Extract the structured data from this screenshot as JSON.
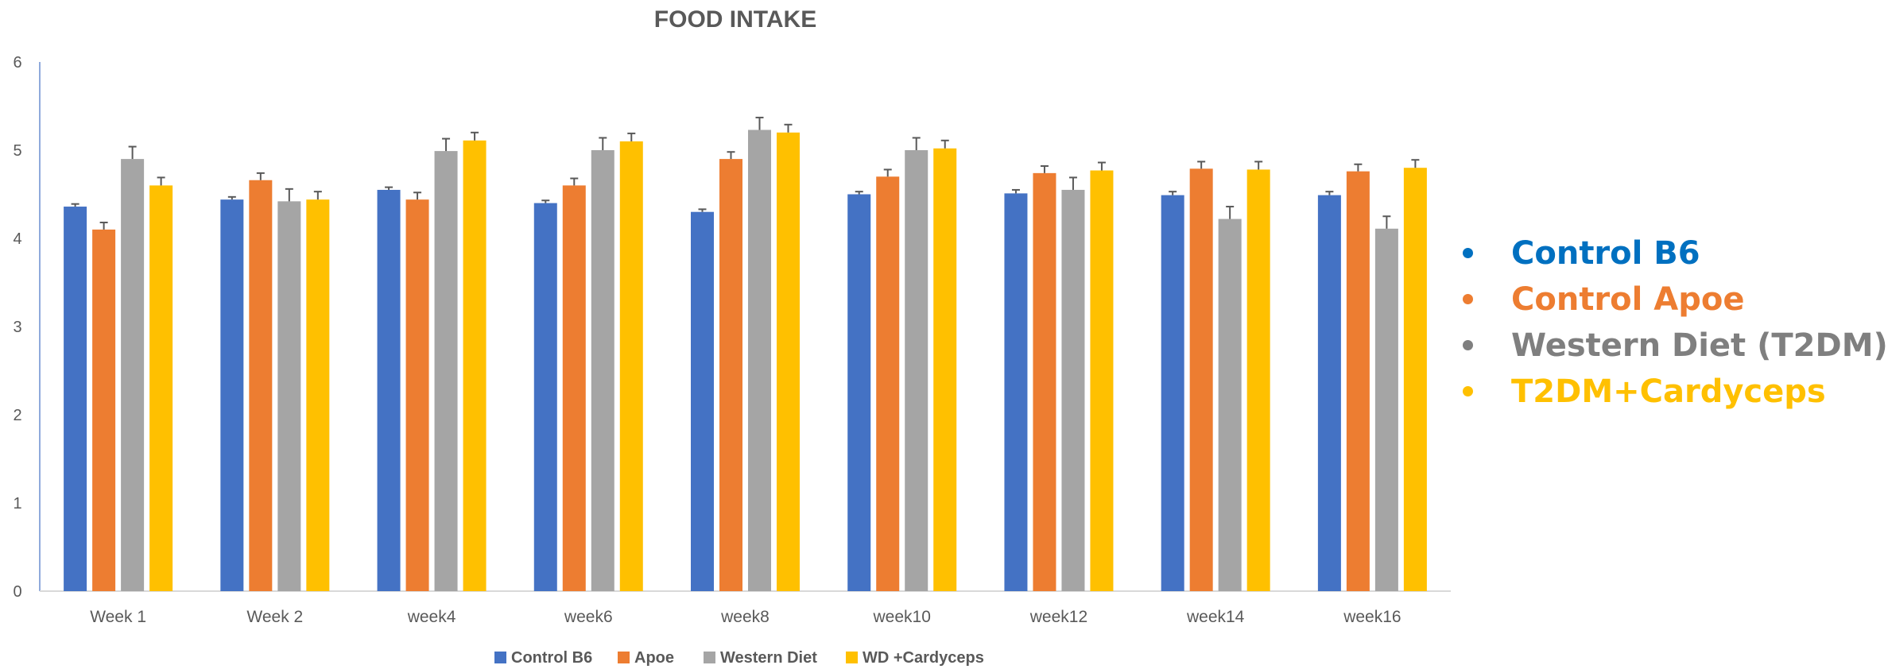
{
  "chart_data": {
    "type": "bar",
    "title": "FOOD INTAKE",
    "xlabel": "",
    "ylabel": "",
    "ylim": [
      0,
      6
    ],
    "yticks": [
      0,
      1,
      2,
      3,
      4,
      5,
      6
    ],
    "grid": false,
    "categories": [
      "Week 1",
      "Week 2",
      "week4",
      "week6",
      "week8",
      "week10",
      "week12",
      "week14",
      "week16"
    ],
    "series": [
      {
        "name": "Control B6",
        "color": "#4472C4",
        "values": [
          4.36,
          4.44,
          4.55,
          4.4,
          4.3,
          4.5,
          4.51,
          4.49,
          4.49
        ],
        "errors": [
          0.03,
          0.03,
          0.03,
          0.03,
          0.03,
          0.03,
          0.04,
          0.04,
          0.04
        ]
      },
      {
        "name": "Apoe",
        "color": "#ED7D31",
        "values": [
          4.1,
          4.66,
          4.44,
          4.6,
          4.9,
          4.7,
          4.74,
          4.79,
          4.76
        ],
        "errors": [
          0.08,
          0.08,
          0.08,
          0.08,
          0.08,
          0.08,
          0.08,
          0.08,
          0.08
        ]
      },
      {
        "name": "Western Diet",
        "color": "#A5A5A5",
        "values": [
          4.9,
          4.42,
          4.99,
          5.0,
          5.23,
          5.0,
          4.55,
          4.22,
          4.11
        ],
        "errors": [
          0.14,
          0.14,
          0.14,
          0.14,
          0.14,
          0.14,
          0.14,
          0.14,
          0.14
        ]
      },
      {
        "name": "WD +Cardyceps",
        "color": "#FFC000",
        "values": [
          4.6,
          4.44,
          5.11,
          5.1,
          5.2,
          5.02,
          4.77,
          4.78,
          4.8
        ],
        "errors": [
          0.09,
          0.09,
          0.09,
          0.09,
          0.09,
          0.09,
          0.09,
          0.09,
          0.09
        ]
      }
    ],
    "legend_position": "bottom",
    "side_legend": [
      {
        "label": "Control B6",
        "color": "#0070C0"
      },
      {
        "label": "Control Apoe",
        "color": "#ED7D31"
      },
      {
        "label": "Western Diet (T2DM)",
        "color": "#7F7F7F"
      },
      {
        "label": "T2DM+Cardyceps",
        "color": "#FFC000"
      }
    ]
  }
}
